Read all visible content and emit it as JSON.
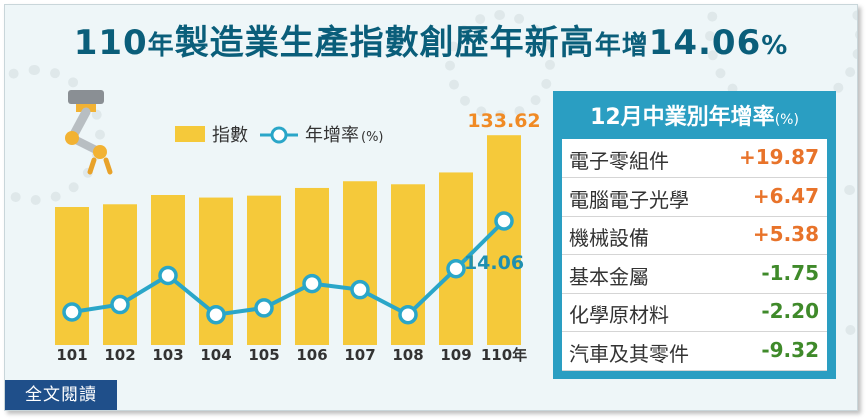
{
  "headline": {
    "part1": "110",
    "part2": "年",
    "part3": "製造業生產指數創歷年新高",
    "part4": "年增",
    "part5": "14.06",
    "part6": "%"
  },
  "legend": {
    "bar_label": "指數",
    "line_label": "年增率",
    "line_unit": "(%)"
  },
  "chart_data": {
    "type": "bar+line",
    "categories": [
      "101",
      "102",
      "103",
      "104",
      "105",
      "106",
      "107",
      "108",
      "109",
      "110年"
    ],
    "series": [
      {
        "name": "指數",
        "type": "bar",
        "values": [
          92.5,
          94.2,
          100.0,
          98.4,
          99.6,
          104.4,
          108.6,
          106.7,
          114.1,
          133.62
        ]
      },
      {
        "name": "年增率",
        "type": "line",
        "values": [
          0.6,
          1.7,
          6.0,
          0.2,
          1.2,
          4.8,
          3.9,
          0.2,
          7.0,
          14.06
        ]
      }
    ],
    "labels": {
      "last_bar": "133.62",
      "last_point": "14.06"
    },
    "colors": {
      "bar": "#f5c93a",
      "line": "#2aa6c8",
      "bar_label": "#f08a24",
      "line_label": "#1f8fb0"
    }
  },
  "table": {
    "title": "12月中業別年增率",
    "unit": "(%)",
    "rows": [
      {
        "name": "電子零組件",
        "value": "+19.87",
        "positive": true
      },
      {
        "name": "電腦電子光學",
        "value": "+6.47",
        "positive": true
      },
      {
        "name": "機械設備",
        "value": "+5.38",
        "positive": true
      },
      {
        "name": "基本金屬",
        "value": "-1.75",
        "positive": false
      },
      {
        "name": "化學原材料",
        "value": "-2.20",
        "positive": false
      },
      {
        "name": "汽車及其零件",
        "value": "-9.32",
        "positive": false
      }
    ],
    "colors": {
      "positive": "#e8732a",
      "negative": "#3f8a2a"
    }
  },
  "footer": {
    "fulltext_label": "全文閱讀"
  }
}
